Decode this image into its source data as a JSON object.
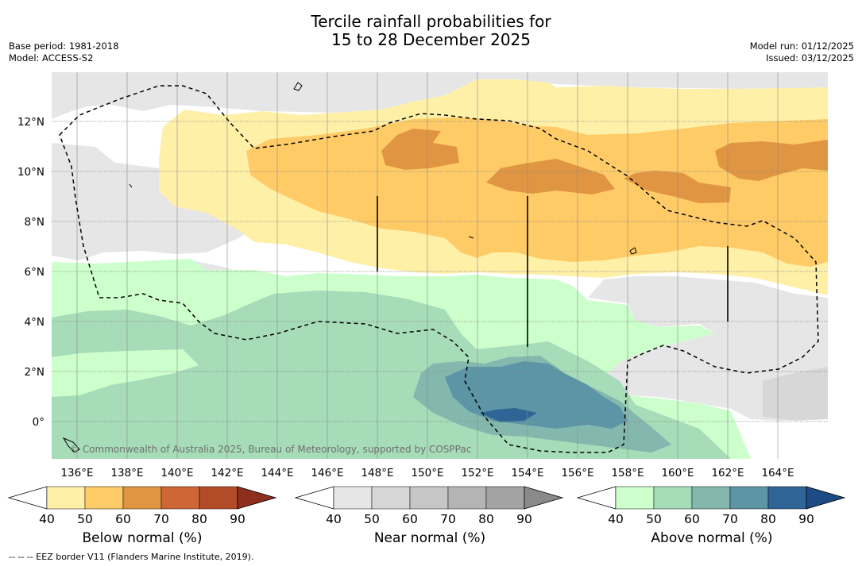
{
  "title_line1": "Tercile rainfall probabilities for",
  "title_line2": "15 to 28 December 2025",
  "base_period": "Base period: 1981-2018",
  "model": "Model: ACCESS-S2",
  "model_run": "Model run: 01/12/2025",
  "issued": "Issued: 03/12/2025",
  "credit": "© Commonwealth of Australia 2025, Bureau of Meteorology, supported by COSPPac",
  "footer": "--  --  -- EEZ border V11 (Flanders Marine Institute, 2019).",
  "map": {
    "lon_labels": [
      "136°E",
      "138°E",
      "140°E",
      "142°E",
      "144°E",
      "146°E",
      "148°E",
      "150°E",
      "152°E",
      "154°E",
      "156°E",
      "158°E",
      "160°E",
      "162°E",
      "164°E"
    ],
    "lat_labels": [
      "12°N",
      "10°N",
      "8°N",
      "6°N",
      "4°N",
      "2°N",
      "0°"
    ]
  },
  "colorbars": {
    "below": {
      "title": "Below normal (%)",
      "ticks": [
        "40",
        "50",
        "60",
        "70",
        "80",
        "90"
      ],
      "colors": [
        "#fff0a8",
        "#ffcb66",
        "#e09543",
        "#cf6636",
        "#b24b27",
        "#8e2e1c"
      ]
    },
    "near": {
      "title": "Near normal (%)",
      "ticks": [
        "40",
        "50",
        "60",
        "70",
        "80",
        "90"
      ],
      "colors": [
        "#e6e6e6",
        "#d7d7d7",
        "#c6c6c6",
        "#b4b4b4",
        "#a3a3a3",
        "#8a8a8a"
      ]
    },
    "above": {
      "title": "Above normal (%)",
      "ticks": [
        "40",
        "50",
        "60",
        "70",
        "80",
        "90"
      ],
      "colors": [
        "#ccffcc",
        "#a6dcb8",
        "#84b8ae",
        "#5b95a6",
        "#2f6596",
        "#1d4b85"
      ]
    }
  }
}
